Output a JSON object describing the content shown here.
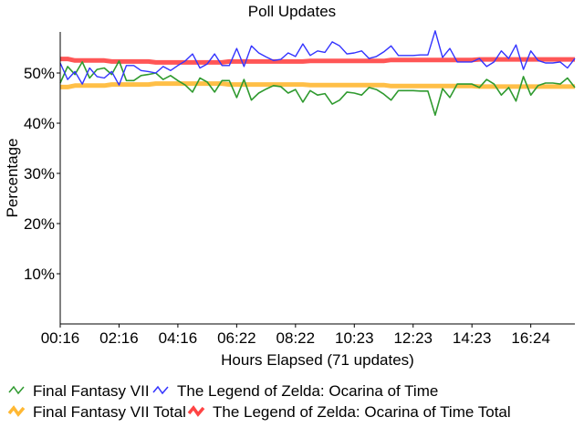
{
  "chart_data": {
    "type": "line",
    "title": "Poll Updates",
    "xlabel": "Hours Elapsed (71 updates)",
    "ylabel": "Percentage",
    "ylim": [
      0,
      58
    ],
    "yticks": [
      "10%",
      "20%",
      "30%",
      "40%",
      "50%"
    ],
    "ytick_values": [
      10,
      20,
      30,
      40,
      50
    ],
    "xtick_labels": [
      "00:16",
      "02:16",
      "04:16",
      "06:22",
      "08:22",
      "10:23",
      "12:23",
      "14:23",
      "16:24"
    ],
    "xtick_update_index": [
      0,
      8,
      16,
      24,
      32,
      40,
      48,
      56,
      64
    ],
    "grid": false,
    "legend_position": "bottom",
    "series": [
      {
        "name": "Final Fantasy VII",
        "color": "#2f9a2f",
        "values": [
          48.0,
          51.3,
          49.7,
          52.2,
          49.0,
          50.7,
          51.0,
          49.7,
          52.4,
          48.5,
          48.5,
          49.5,
          49.7,
          50.0,
          48.7,
          49.5,
          48.5,
          47.6,
          46.2,
          49.0,
          48.2,
          46.2,
          48.5,
          48.5,
          45.1,
          48.7,
          44.6,
          46.0,
          46.8,
          47.5,
          47.3,
          46.0,
          46.7,
          44.2,
          46.5,
          45.6,
          45.9,
          43.8,
          44.6,
          46.2,
          46.0,
          45.6,
          47.1,
          46.7,
          45.8,
          44.6,
          46.5,
          46.5,
          46.5,
          46.4,
          46.4,
          41.6,
          46.9,
          45.1,
          47.8,
          47.8,
          47.8,
          47.1,
          48.7,
          47.8,
          45.6,
          47.1,
          44.4,
          49.3,
          45.6,
          47.5,
          48.0,
          48.0,
          47.8,
          49.0,
          47.1
        ]
      },
      {
        "name": "The Legend of Zelda: Ocarina of Time",
        "color": "#3333ff",
        "values": [
          52.0,
          48.7,
          50.3,
          47.8,
          51.0,
          49.3,
          49.0,
          50.3,
          47.6,
          51.5,
          51.5,
          50.5,
          50.3,
          50.0,
          51.3,
          50.5,
          51.5,
          52.4,
          53.8,
          51.0,
          51.8,
          53.8,
          51.5,
          51.5,
          54.9,
          51.3,
          55.4,
          54.0,
          53.2,
          52.5,
          52.7,
          54.0,
          53.3,
          55.8,
          53.5,
          54.4,
          54.1,
          56.2,
          55.4,
          53.8,
          54.0,
          54.4,
          52.9,
          53.3,
          54.2,
          55.4,
          53.5,
          53.5,
          53.5,
          53.6,
          53.6,
          58.4,
          53.1,
          54.9,
          52.2,
          52.2,
          52.2,
          52.9,
          51.3,
          52.2,
          54.4,
          52.9,
          55.6,
          50.7,
          54.4,
          52.5,
          52.0,
          52.0,
          52.2,
          51.0,
          52.9
        ]
      },
      {
        "name": "Final Fantasy VII Total",
        "color": "#ffb833",
        "values": [
          47.2,
          47.2,
          47.5,
          47.5,
          47.5,
          47.5,
          47.5,
          47.7,
          47.7,
          47.7,
          47.7,
          47.7,
          47.7,
          47.9,
          47.9,
          47.9,
          47.9,
          47.9,
          47.9,
          47.9,
          47.9,
          47.9,
          47.9,
          47.7,
          47.7,
          47.7,
          47.7,
          47.7,
          47.7,
          47.7,
          47.7,
          47.7,
          47.7,
          47.7,
          47.6,
          47.6,
          47.6,
          47.6,
          47.6,
          47.6,
          47.6,
          47.6,
          47.6,
          47.6,
          47.6,
          47.4,
          47.4,
          47.4,
          47.4,
          47.4,
          47.4,
          47.4,
          47.4,
          47.4,
          47.4,
          47.4,
          47.4,
          47.3,
          47.3,
          47.3,
          47.3,
          47.3,
          47.3,
          47.3,
          47.3,
          47.3,
          47.3,
          47.3,
          47.3,
          47.3,
          47.3
        ]
      },
      {
        "name": "The Legend of Zelda: Ocarina of Time Total",
        "color": "#ff4444",
        "values": [
          52.8,
          52.8,
          52.5,
          52.5,
          52.5,
          52.5,
          52.5,
          52.3,
          52.3,
          52.3,
          52.3,
          52.3,
          52.3,
          52.1,
          52.1,
          52.1,
          52.1,
          52.1,
          52.1,
          52.1,
          52.1,
          52.1,
          52.1,
          52.3,
          52.3,
          52.3,
          52.3,
          52.3,
          52.3,
          52.3,
          52.3,
          52.3,
          52.3,
          52.3,
          52.4,
          52.4,
          52.4,
          52.4,
          52.4,
          52.4,
          52.4,
          52.4,
          52.4,
          52.4,
          52.4,
          52.6,
          52.6,
          52.6,
          52.6,
          52.6,
          52.6,
          52.6,
          52.6,
          52.6,
          52.6,
          52.6,
          52.6,
          52.7,
          52.7,
          52.7,
          52.7,
          52.7,
          52.7,
          52.7,
          52.7,
          52.7,
          52.7,
          52.7,
          52.7,
          52.7,
          52.7
        ]
      }
    ]
  }
}
